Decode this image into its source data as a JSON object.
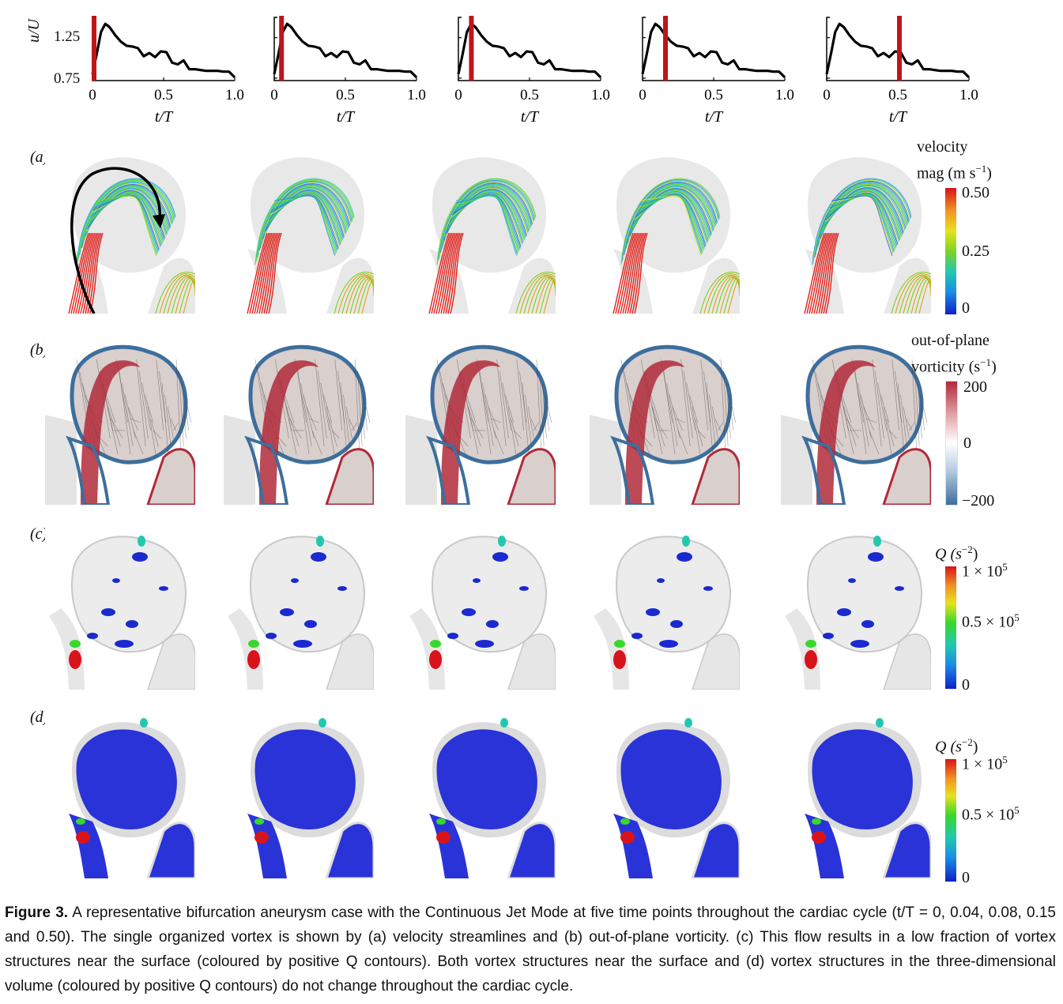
{
  "waveform": {
    "y_label": "u/U",
    "x_label": "t/T",
    "y_ticks": [
      "1.25",
      "0.75"
    ],
    "x_ticks": [
      "0",
      "0.5",
      "1.0"
    ],
    "marker_color": "#c0141a",
    "panels": [
      {
        "marker_t": 0.0
      },
      {
        "marker_t": 0.04
      },
      {
        "marker_t": 0.08
      },
      {
        "marker_t": 0.15
      },
      {
        "marker_t": 0.5
      }
    ]
  },
  "chart_data": {
    "type": "line",
    "xlabel": "t/T",
    "ylabel": "u/U",
    "ylim": [
      0.72,
      1.5
    ],
    "xlim": [
      0,
      1.0
    ],
    "series": [
      {
        "x": [
          0,
          0.03,
          0.06,
          0.09,
          0.12,
          0.16,
          0.2,
          0.24,
          0.28,
          0.32,
          0.36,
          0.4,
          0.44,
          0.48,
          0.52,
          0.56,
          0.6,
          0.64,
          0.68,
          0.72,
          0.76,
          0.8,
          0.84,
          0.88,
          0.92,
          0.96,
          1.0
        ],
        "y": [
          0.8,
          1.05,
          1.32,
          1.42,
          1.38,
          1.28,
          1.2,
          1.15,
          1.14,
          1.12,
          1.02,
          1.06,
          1.01,
          1.08,
          1.07,
          0.94,
          0.92,
          0.97,
          0.86,
          0.86,
          0.85,
          0.84,
          0.84,
          0.84,
          0.83,
          0.83,
          0.76
        ]
      }
    ]
  },
  "rows": [
    {
      "label": "(a)",
      "colorbar": {
        "title_line1": "velocity",
        "title_line2": "mag (m s",
        "title_sup": "−1",
        "title_end": ")",
        "ticks": [
          "0.50",
          "0.25",
          "0"
        ]
      }
    },
    {
      "label": "(b)",
      "colorbar": {
        "title_line1": "out-of-plane",
        "title_line2": "vorticity (s",
        "title_sup": "−1",
        "title_end": ")",
        "ticks": [
          "200",
          "0",
          "−200"
        ]
      }
    },
    {
      "label": "(c)",
      "colorbar": {
        "title_line1": "Q (s",
        "title_sup": "−2",
        "title_end": ")",
        "ticks": [
          "1 × 10",
          "0.5 × 10",
          "0"
        ],
        "tick_sup": "5"
      }
    },
    {
      "label": "(d)",
      "colorbar": {
        "title_line1": "Q (s",
        "title_sup": "−2",
        "title_end": ")",
        "ticks": [
          "1 × 10",
          "0.5 × 10",
          "0"
        ],
        "tick_sup": "5"
      }
    }
  ],
  "caption": {
    "label": "Figure 3.",
    "text": "A representative bifurcation aneurysm case with the Continuous Jet Mode at five time points throughout the cardiac cycle (t/T = 0, 0.04, 0.08, 0.15 and 0.50). The single organized vortex is shown by (a) velocity streamlines and (b) out-of-plane vorticity. (c) This flow results in a low fraction of vortex structures near the surface (coloured by positive Q contours). Both vortex structures near the surface and (d) vortex structures in the three-dimensional volume (coloured by positive Q contours) do not change throughout the cardiac cycle."
  }
}
